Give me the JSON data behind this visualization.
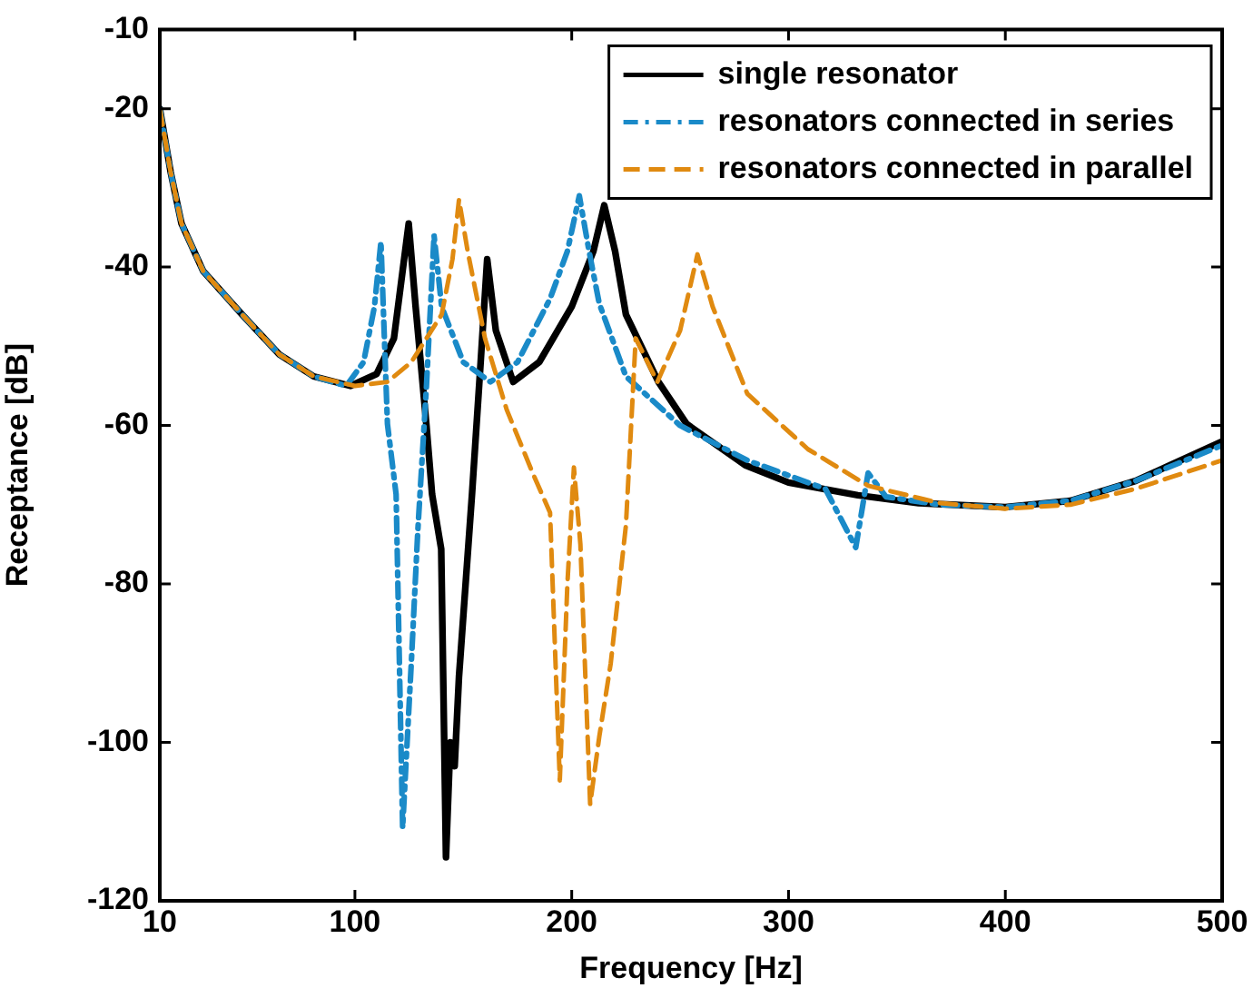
{
  "chart_data": {
    "type": "line",
    "xlabel": "Frequency [Hz]",
    "ylabel": "Receptance [dB]",
    "xlim": [
      10,
      500
    ],
    "xticks": [
      10,
      100,
      200,
      300,
      400,
      500
    ],
    "ylim": [
      -120,
      -10
    ],
    "yticks": [
      -120,
      -100,
      -80,
      -60,
      -40,
      -20,
      -10
    ],
    "grid": false,
    "legend": "top right",
    "marker": "none",
    "series": [
      {
        "name": "single resonator",
        "color": "#000000",
        "line_style": "solid",
        "x": [
          10,
          15,
          20,
          30,
          48,
          65,
          81,
          98,
          110,
          118,
          124.8,
          128,
          133,
          135.6,
          139.8,
          141.5,
          142,
          144,
          146,
          148,
          154,
          158,
          161,
          165,
          173,
          185,
          200,
          210,
          215,
          220,
          225,
          240,
          253,
          280,
          300,
          332,
          360,
          400,
          430,
          460,
          500
        ],
        "values": [
          -20,
          -28,
          -34.5,
          -40.5,
          -46,
          -51,
          -53.8,
          -55,
          -53.5,
          -49,
          -34.5,
          -45,
          -60,
          -68.7,
          -75.6,
          -105.5,
          -114.5,
          -100,
          -103,
          -91.7,
          -68.7,
          -52,
          -39,
          -48,
          -54.5,
          -52,
          -45,
          -38,
          -32.2,
          -38,
          -46,
          -54.5,
          -59.8,
          -65,
          -67.2,
          -68.8,
          -69.8,
          -70.3,
          -69.5,
          -67,
          -62
        ]
      },
      {
        "name": "resonators connected in series",
        "color": "#1a8ac8",
        "line_style": "dashdot",
        "x": [
          10,
          15,
          20,
          30,
          48,
          65,
          81,
          96,
          104,
          109,
          112,
          115,
          119,
          122,
          126,
          129,
          133,
          136.5,
          140,
          150,
          162.5,
          175,
          190,
          198,
          203.5,
          208,
          212.7,
          225,
          250,
          281,
          317,
          331,
          336.7,
          345,
          370,
          400,
          430,
          460,
          500
        ],
        "values": [
          -20,
          -28,
          -34.5,
          -40.5,
          -46,
          -51,
          -53.8,
          -55,
          -52,
          -45,
          -36.8,
          -59.8,
          -68.7,
          -110.8,
          -90,
          -73.3,
          -55,
          -36,
          -45,
          -52,
          -54.5,
          -52,
          -44,
          -38,
          -31,
          -38,
          -44.6,
          -53.8,
          -60,
          -64.4,
          -68,
          -75.4,
          -66,
          -69,
          -70,
          -70.3,
          -69.5,
          -67,
          -62.5
        ]
      },
      {
        "name": "resonators connected in parallel",
        "color": "#e08a10",
        "line_style": "dashed",
        "x": [
          10,
          15,
          20,
          30,
          48,
          65,
          81,
          100,
          115,
          126,
          140,
          145,
          148,
          152,
          160,
          170,
          182,
          190,
          194.5,
          198,
          201,
          204,
          208.5,
          212.7,
          218,
          225,
          229.5,
          239.5,
          250,
          258,
          265,
          281,
          309,
          336.7,
          370,
          400,
          430,
          460,
          500
        ],
        "values": [
          -20,
          -28,
          -34.5,
          -40.5,
          -46,
          -51,
          -53.8,
          -55,
          -54.5,
          -52,
          -46,
          -39,
          -31.5,
          -38,
          -49,
          -58,
          -66,
          -71,
          -104.8,
          -80,
          -65.3,
          -75,
          -107.8,
          -99.3,
          -90,
          -72.6,
          -49,
          -54.5,
          -48,
          -38.4,
          -45,
          -56,
          -63,
          -67.6,
          -69.8,
          -70.5,
          -70,
          -68,
          -64.4
        ]
      }
    ]
  }
}
